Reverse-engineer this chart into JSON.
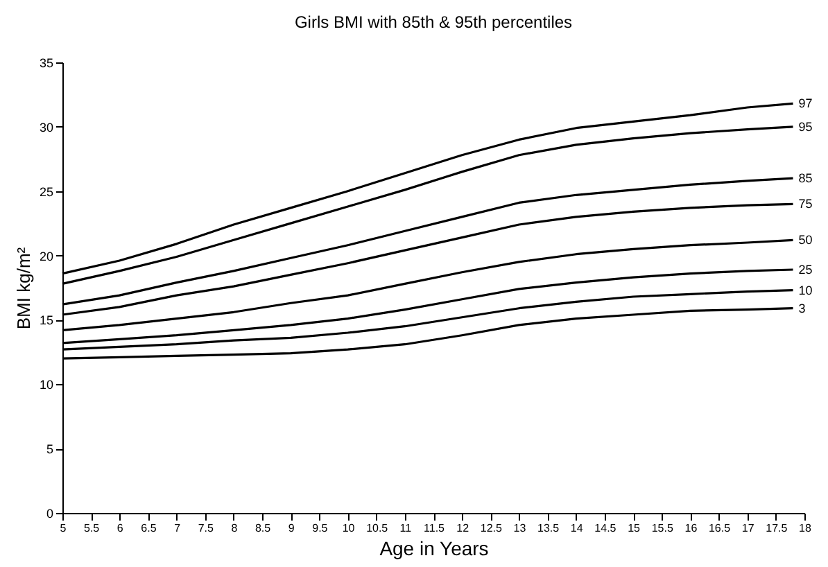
{
  "chart_data": {
    "type": "line",
    "title": "Girls BMI with 85th & 95th percentiles",
    "xlabel": "Age in Years",
    "ylabel": "BMI kg/m²",
    "x": [
      5,
      6,
      7,
      8,
      9,
      10,
      11,
      12,
      13,
      14,
      15,
      16,
      17,
      17.8
    ],
    "series": [
      {
        "name": "97",
        "color": "#000000",
        "values": [
          18.6,
          19.6,
          20.9,
          22.4,
          23.7,
          25.0,
          26.4,
          27.8,
          29.0,
          29.9,
          30.4,
          30.9,
          31.5,
          31.8
        ]
      },
      {
        "name": "95",
        "color": "#000000",
        "values": [
          17.8,
          18.8,
          19.9,
          21.2,
          22.5,
          23.8,
          25.1,
          26.5,
          27.8,
          28.6,
          29.1,
          29.5,
          29.8,
          30.0
        ]
      },
      {
        "name": "85",
        "color": "#000000",
        "values": [
          16.2,
          16.9,
          17.9,
          18.8,
          19.8,
          20.8,
          21.9,
          23.0,
          24.1,
          24.7,
          25.1,
          25.5,
          25.8,
          26.0
        ]
      },
      {
        "name": "75",
        "color": "#000000",
        "values": [
          15.4,
          16.0,
          16.9,
          17.6,
          18.5,
          19.4,
          20.4,
          21.4,
          22.4,
          23.0,
          23.4,
          23.7,
          23.9,
          24.0
        ]
      },
      {
        "name": "50",
        "color": "#000000",
        "values": [
          14.2,
          14.6,
          15.1,
          15.6,
          16.3,
          16.9,
          17.8,
          18.7,
          19.5,
          20.1,
          20.5,
          20.8,
          21.0,
          21.2
        ]
      },
      {
        "name": "25",
        "color": "#000000",
        "values": [
          13.2,
          13.5,
          13.8,
          14.2,
          14.6,
          15.1,
          15.8,
          16.6,
          17.4,
          17.9,
          18.3,
          18.6,
          18.8,
          18.9
        ]
      },
      {
        "name": "10",
        "color": "#000000",
        "values": [
          12.7,
          12.9,
          13.1,
          13.4,
          13.6,
          14.0,
          14.5,
          15.2,
          15.9,
          16.4,
          16.8,
          17.0,
          17.2,
          17.3
        ]
      },
      {
        "name": "3",
        "color": "#000000",
        "values": [
          12.0,
          12.1,
          12.2,
          12.3,
          12.4,
          12.7,
          13.1,
          13.8,
          14.6,
          15.1,
          15.4,
          15.7,
          15.8,
          15.9
        ]
      }
    ],
    "xlim": [
      5,
      18
    ],
    "xticks": [
      5,
      5.5,
      6,
      6.5,
      7,
      7.5,
      8,
      8.5,
      9,
      9.5,
      10,
      10.5,
      11,
      11.5,
      12,
      12.5,
      13,
      13.5,
      14,
      14.5,
      15,
      15.5,
      16,
      16.5,
      17,
      17.5,
      18
    ],
    "ylim": [
      0,
      35
    ],
    "yticks": [
      0,
      5,
      10,
      15,
      20,
      25,
      30,
      35
    ],
    "grid": false,
    "marker": "none",
    "line_style": "solid"
  }
}
